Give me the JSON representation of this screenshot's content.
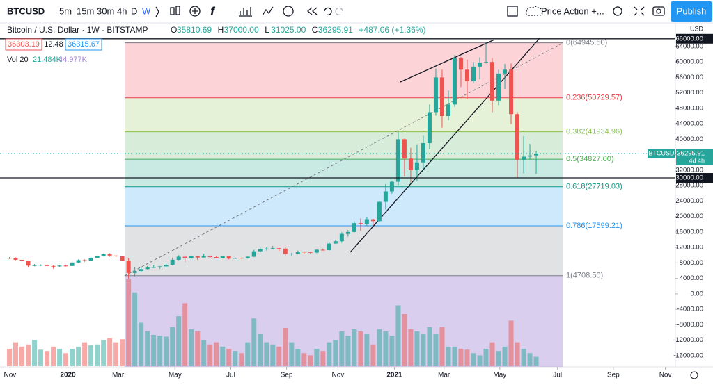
{
  "toolbar": {
    "symbol": "BTCUSD",
    "intervals": [
      "5m",
      "15m",
      "30m",
      "4h",
      "D",
      "W"
    ],
    "layout": "Price Action +...",
    "publish": "Publish"
  },
  "legend": {
    "title": "Bitcoin / U.S. Dollar · 1W · BITSTAMP",
    "ohlc": [
      [
        "O",
        "35810.69"
      ],
      [
        "H",
        "37000.00"
      ],
      [
        "L",
        "31025.00"
      ],
      [
        "C",
        "36295.91"
      ]
    ],
    "change": "+487.06 (+1.36%)",
    "bid": "36303.19",
    "spread": "12.48",
    "ask": "36315.67",
    "vol_label": "Vol 20",
    "vol": "21.484K",
    "vol_ma": "44.977K"
  },
  "chart_data": {
    "type": "candlestick",
    "up_color": "#26a69a",
    "down_color": "#ef5350",
    "volume_up_color": "rgba(38,166,154,0.5)",
    "volume_down_color": "rgba(239,83,80,0.5)",
    "x": [
      0,
      1,
      2,
      3,
      4,
      5,
      6,
      7,
      8,
      9,
      10,
      11,
      12,
      13,
      14,
      15,
      16,
      17,
      18,
      19,
      20,
      21,
      22,
      23,
      24,
      25,
      26,
      27,
      28,
      29,
      30,
      31,
      32,
      33,
      34,
      35,
      36,
      37,
      38,
      39,
      40,
      41,
      42,
      43,
      44,
      45,
      46,
      47,
      48,
      49,
      50,
      51,
      52,
      53,
      54,
      55,
      56,
      57,
      58,
      59,
      60,
      61,
      62,
      63,
      64,
      65,
      66,
      67,
      68,
      69,
      70,
      71,
      72,
      73,
      74,
      75,
      76,
      77,
      78,
      79,
      80,
      81,
      82,
      83,
      84
    ],
    "open": [
      9300,
      9200,
      8800,
      8500,
      7300,
      7400,
      7500,
      7200,
      7100,
      7300,
      7200,
      8100,
      8700,
      8600,
      9300,
      9800,
      10300,
      9900,
      9700,
      8600,
      5400,
      5900,
      6400,
      6800,
      6900,
      7100,
      7500,
      8800,
      9600,
      9300,
      9700,
      9400,
      9700,
      9500,
      9300,
      9700,
      9100,
      9300,
      9200,
      9600,
      11000,
      11600,
      11700,
      11800,
      11700,
      10300,
      10400,
      10900,
      10800,
      10700,
      11400,
      11300,
      13000,
      13600,
      15500,
      16000,
      18300,
      18100,
      19300,
      18800,
      23800,
      26500,
      29000,
      40000,
      35000,
      32000,
      34000,
      39000,
      47000,
      56000,
      46000,
      49000,
      61000,
      58000,
      55000,
      58800,
      59800,
      60000,
      50000,
      57000,
      58000,
      46500,
      34700,
      35500,
      35810.69
    ],
    "high": [
      9500,
      9400,
      8900,
      8600,
      7700,
      7600,
      7600,
      7400,
      7500,
      7400,
      8400,
      8900,
      8900,
      9500,
      9900,
      10400,
      10500,
      10000,
      9800,
      9200,
      6900,
      6800,
      7200,
      7400,
      7200,
      7800,
      9400,
      10000,
      9900,
      9900,
      9800,
      10400,
      9900,
      9800,
      9800,
      9800,
      9400,
      9400,
      9700,
      11400,
      12000,
      12100,
      12400,
      11900,
      12000,
      10600,
      11200,
      11000,
      10900,
      11500,
      11700,
      13200,
      14000,
      15900,
      16500,
      18800,
      19500,
      19900,
      19400,
      24000,
      28400,
      29300,
      41900,
      40200,
      37800,
      38700,
      40900,
      49000,
      58300,
      58000,
      52600,
      61800,
      61300,
      60600,
      60000,
      61200,
      64900,
      61000,
      58000,
      59500,
      59600,
      47000,
      40800,
      38800,
      37000
    ],
    "low": [
      9000,
      8700,
      8400,
      6900,
      7100,
      7200,
      7100,
      6500,
      7000,
      7100,
      7200,
      8000,
      8300,
      8500,
      9200,
      9700,
      9600,
      9500,
      8500,
      3900,
      4500,
      5700,
      6300,
      6700,
      6500,
      6800,
      7400,
      8700,
      8100,
      9000,
      8800,
      9400,
      9300,
      9200,
      9200,
      8900,
      9000,
      9100,
      9100,
      9500,
      10700,
      11200,
      11600,
      11100,
      9900,
      9900,
      10200,
      10200,
      10400,
      10500,
      11200,
      11200,
      12900,
      13200,
      14800,
      15900,
      16300,
      17600,
      17600,
      18700,
      21800,
      25900,
      28100,
      30400,
      28800,
      29200,
      32300,
      37400,
      46100,
      43000,
      44900,
      48400,
      53500,
      50400,
      54700,
      55500,
      59600,
      47000,
      48800,
      53000,
      43900,
      30000,
      31200,
      34800,
      31025
    ],
    "close": [
      9200,
      8800,
      8500,
      7300,
      7400,
      7500,
      7200,
      7100,
      7300,
      7200,
      8100,
      8700,
      8600,
      9300,
      9800,
      10300,
      9900,
      9700,
      8600,
      5400,
      5900,
      6400,
      6800,
      6900,
      7100,
      7500,
      8800,
      9600,
      9300,
      9700,
      9400,
      9700,
      9500,
      9300,
      9700,
      9100,
      9300,
      9200,
      9600,
      11000,
      11600,
      11700,
      11800,
      11700,
      10300,
      10400,
      10900,
      10800,
      10700,
      11400,
      11300,
      13000,
      13600,
      15500,
      16000,
      18300,
      18100,
      19300,
      18800,
      23800,
      26500,
      29000,
      40000,
      35000,
      32000,
      34000,
      39000,
      47000,
      56000,
      46000,
      49000,
      61000,
      58000,
      55000,
      58800,
      59800,
      60000,
      50000,
      57000,
      58000,
      46500,
      34700,
      35500,
      35800,
      36295.91
    ],
    "volume": [
      40,
      55,
      45,
      50,
      60,
      38,
      35,
      45,
      40,
      30,
      40,
      45,
      55,
      48,
      50,
      60,
      65,
      55,
      62,
      200,
      170,
      100,
      80,
      72,
      70,
      68,
      90,
      115,
      145,
      85,
      80,
      60,
      50,
      55,
      45,
      40,
      35,
      30,
      55,
      110,
      75,
      55,
      50,
      45,
      88,
      55,
      40,
      30,
      25,
      40,
      35,
      55,
      60,
      80,
      70,
      85,
      80,
      75,
      50,
      85,
      80,
      70,
      140,
      120,
      85,
      80,
      75,
      90,
      75,
      90,
      45,
      45,
      40,
      38,
      30,
      25,
      40,
      55,
      35,
      45,
      105,
      55,
      40,
      30,
      21.484
    ],
    "volume_lim": [
      0,
      200
    ],
    "xlim": [
      -1.5,
      106.2
    ],
    "xticks": [
      {
        "value": 0.1,
        "label": "Nov"
      },
      {
        "value": 9.33,
        "label": "2020"
      },
      {
        "value": 17.33,
        "label": "Mar"
      },
      {
        "value": 26.4,
        "label": "May"
      },
      {
        "value": 35.3,
        "label": "Jul"
      },
      {
        "value": 44.2,
        "label": "Sep"
      },
      {
        "value": 52.4,
        "label": "Nov"
      },
      {
        "value": 61.4,
        "label": "2021"
      },
      {
        "value": 69.3,
        "label": "Mar"
      },
      {
        "value": 78.2,
        "label": "May"
      },
      {
        "value": 87.4,
        "label": "Jul"
      },
      {
        "value": 96.3,
        "label": "Sep"
      },
      {
        "value": 104.6,
        "label": "Nov"
      }
    ],
    "ylim": [
      -18900,
      70100
    ],
    "y_unit": "USD",
    "yticks": [
      {
        "value": -16000,
        "label": "-16000.00"
      },
      {
        "value": -12000,
        "label": "-12000.00"
      },
      {
        "value": -8000,
        "label": "-8000.00"
      },
      {
        "value": -4000,
        "label": "-4000.00"
      },
      {
        "value": 0,
        "label": "0.00"
      },
      {
        "value": 4000,
        "label": "4000.00"
      },
      {
        "value": 8000,
        "label": "8000.00"
      },
      {
        "value": 12000,
        "label": "12000.00"
      },
      {
        "value": 16000,
        "label": "16000.00"
      },
      {
        "value": 20000,
        "label": "20000.00"
      },
      {
        "value": 24000,
        "label": "24000.00"
      },
      {
        "value": 28000,
        "label": "28000.00"
      },
      {
        "value": 32000,
        "label": "32000.00"
      },
      {
        "value": 36000,
        "label": "36000.00"
      },
      {
        "value": 40000,
        "label": "40000.00"
      },
      {
        "value": 44000,
        "label": "44000.00"
      },
      {
        "value": 48000,
        "label": "48000.00"
      },
      {
        "value": 52000,
        "label": "52000.00"
      },
      {
        "value": 56000,
        "label": "56000.00"
      },
      {
        "value": 60000,
        "label": "60000.00"
      },
      {
        "value": 64000,
        "label": "64000.00"
      }
    ],
    "hlines": [
      {
        "value": 66000,
        "label": "66000.00"
      },
      {
        "value": 30000,
        "label": "30000.00"
      }
    ],
    "fib_levels": [
      {
        "value": 64945.5,
        "label": "0(64945.50)",
        "color": "#787b86"
      },
      {
        "value": 50729.57,
        "label": "0.236(50729.57)",
        "color": "#f23645"
      },
      {
        "value": 41934.96,
        "label": "0.382(41934.96)",
        "color": "#8bc34a"
      },
      {
        "value": 34827,
        "label": "0.5(34827.00)",
        "color": "#4caf50"
      },
      {
        "value": 27719.03,
        "label": "0.618(27719.03)",
        "color": "#089981"
      },
      {
        "value": 17599.21,
        "label": "0.786(17599.21)",
        "color": "#2196f3"
      },
      {
        "value": 4708.5,
        "label": "1(4708.50)",
        "color": "#787b86"
      }
    ],
    "price_label": {
      "symbol": "BTCUSD",
      "countdown": "4d 4h"
    }
  }
}
